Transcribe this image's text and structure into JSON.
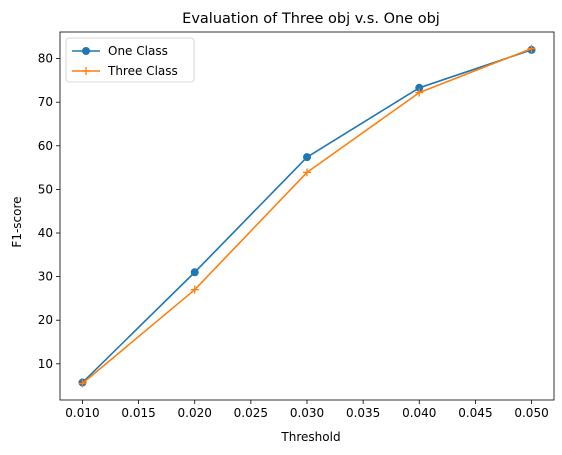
{
  "chart_data": {
    "type": "line",
    "title": "Evaluation of Three obj v.s. One obj",
    "xlabel": "Threshold",
    "ylabel": "F1-score",
    "x": [
      0.01,
      0.02,
      0.03,
      0.04,
      0.05
    ],
    "xticks": [
      "0.010",
      "0.015",
      "0.020",
      "0.025",
      "0.030",
      "0.035",
      "0.040",
      "0.045",
      "0.050"
    ],
    "yticks": [
      "10",
      "20",
      "30",
      "40",
      "50",
      "60",
      "70",
      "80"
    ],
    "xlim": [
      0.008,
      0.052
    ],
    "ylim": [
      1.7,
      86.1
    ],
    "grid": false,
    "legend_position": "upper-left",
    "series": [
      {
        "name": "One Class",
        "values": [
          5.7,
          31.0,
          57.4,
          73.3,
          82.0
        ],
        "color": "#1f77b4",
        "marker": "circle"
      },
      {
        "name": "Three Class",
        "values": [
          5.5,
          27.0,
          53.9,
          72.2,
          82.3
        ],
        "color": "#ff7f0e",
        "marker": "plus"
      }
    ]
  }
}
